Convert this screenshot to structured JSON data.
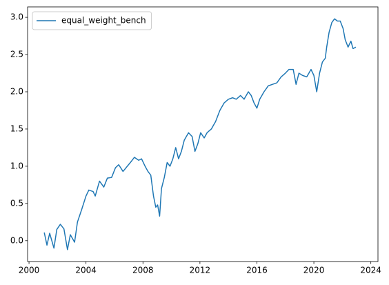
{
  "chart_data": {
    "type": "line",
    "x": [
      2001.07,
      2001.26,
      2001.45,
      2001.75,
      2001.95,
      2002.2,
      2002.45,
      2002.7,
      2002.9,
      2003.2,
      2003.4,
      2003.7,
      2004.0,
      2004.2,
      2004.5,
      2004.65,
      2004.95,
      2005.25,
      2005.5,
      2005.8,
      2006.07,
      2006.3,
      2006.6,
      2006.9,
      2007.2,
      2007.4,
      2007.7,
      2007.9,
      2008.15,
      2008.35,
      2008.55,
      2008.74,
      2008.9,
      2009.03,
      2009.17,
      2009.3,
      2009.5,
      2009.7,
      2009.9,
      2010.1,
      2010.3,
      2010.5,
      2010.7,
      2010.9,
      2011.2,
      2011.45,
      2011.65,
      2011.85,
      2012.05,
      2012.3,
      2012.5,
      2012.8,
      2013.1,
      2013.4,
      2013.7,
      2014.0,
      2014.3,
      2014.55,
      2014.85,
      2015.1,
      2015.4,
      2015.6,
      2015.8,
      2016.0,
      2016.2,
      2016.5,
      2016.8,
      2017.1,
      2017.4,
      2017.7,
      2018.0,
      2018.25,
      2018.55,
      2018.75,
      2018.95,
      2019.2,
      2019.5,
      2019.8,
      2020.0,
      2020.2,
      2020.4,
      2020.6,
      2020.8,
      2020.9,
      2021.07,
      2021.26,
      2021.45,
      2021.65,
      2021.85,
      2022.05,
      2022.2,
      2022.4,
      2022.6,
      2022.75,
      2022.95
    ],
    "series": [
      {
        "name": "equal_weight_bench",
        "color": "#1f77b4",
        "values": [
          0.11,
          -0.06,
          0.1,
          -0.1,
          0.15,
          0.22,
          0.16,
          -0.12,
          0.08,
          -0.02,
          0.25,
          0.42,
          0.6,
          0.68,
          0.66,
          0.6,
          0.8,
          0.72,
          0.84,
          0.85,
          0.98,
          1.02,
          0.93,
          1.0,
          1.07,
          1.12,
          1.08,
          1.1,
          1.0,
          0.93,
          0.88,
          0.6,
          0.45,
          0.48,
          0.33,
          0.7,
          0.85,
          1.05,
          1.0,
          1.1,
          1.25,
          1.1,
          1.2,
          1.35,
          1.45,
          1.4,
          1.2,
          1.3,
          1.45,
          1.38,
          1.45,
          1.5,
          1.6,
          1.75,
          1.85,
          1.9,
          1.92,
          1.9,
          1.95,
          1.9,
          2.0,
          1.95,
          1.85,
          1.78,
          1.9,
          2.0,
          2.08,
          2.1,
          2.12,
          2.2,
          2.25,
          2.3,
          2.3,
          2.1,
          2.25,
          2.22,
          2.2,
          2.3,
          2.22,
          2.0,
          2.25,
          2.4,
          2.45,
          2.6,
          2.8,
          2.93,
          2.98,
          2.95,
          2.95,
          2.85,
          2.7,
          2.6,
          2.68,
          2.58,
          2.6
        ]
      }
    ],
    "xlim": [
      1999.9,
      2024.5
    ],
    "xticks": [
      2000,
      2004,
      2008,
      2012,
      2016,
      2020,
      2024
    ],
    "ylim": [
      -0.28,
      3.14
    ],
    "yticks": [
      {
        "value": 0,
        "label": "0.0"
      },
      0.5,
      {
        "value": 1,
        "label": "1.0"
      },
      1.5,
      {
        "value": 2,
        "label": "2.0"
      },
      2.5,
      {
        "value": 3,
        "label": "3.0"
      }
    ],
    "legend": "upper left",
    "grid": false
  }
}
